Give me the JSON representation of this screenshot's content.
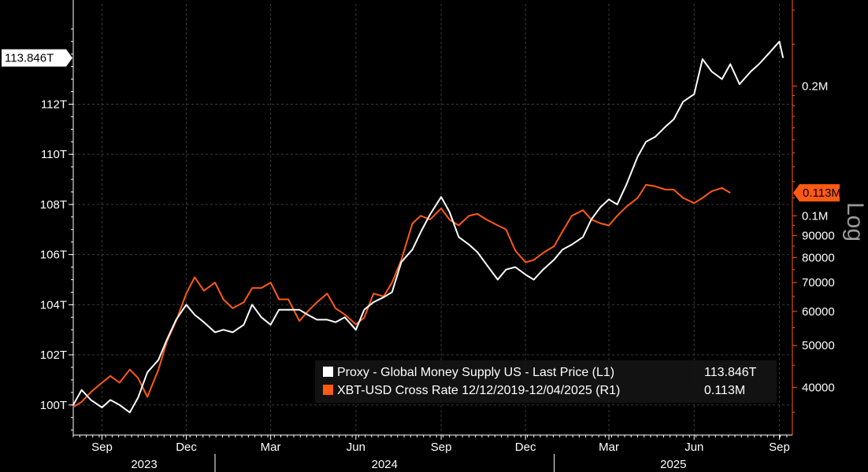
{
  "chart_data": {
    "type": "line",
    "left_axis": {
      "ticks": [
        100,
        102,
        104,
        106,
        108,
        110,
        112
      ],
      "tick_labels": [
        "100T",
        "102T",
        "104T",
        "106T",
        "108T",
        "110T",
        "112T"
      ],
      "range": [
        98.8,
        116.0
      ],
      "current_label": "113.846T"
    },
    "right_axis": {
      "scale": "log",
      "scale_label": "Log",
      "ticks": [
        40000,
        50000,
        60000,
        70000,
        80000,
        90000,
        100000,
        200000
      ],
      "tick_labels": [
        "40000",
        "50000",
        "60000",
        "70000",
        "80000",
        "90000",
        "0.1M",
        "0.2M"
      ],
      "range": [
        31000,
        310000
      ],
      "current_label": "0.113M"
    },
    "x_axis": {
      "range": [
        "2023-08-01",
        "2025-09-15"
      ],
      "month_labels": [
        {
          "date": "2023-09-01",
          "label": "Sep"
        },
        {
          "date": "2023-12-01",
          "label": "Dec"
        },
        {
          "date": "2024-03-01",
          "label": "Mar"
        },
        {
          "date": "2024-06-01",
          "label": "Jun"
        },
        {
          "date": "2024-09-01",
          "label": "Sep"
        },
        {
          "date": "2024-12-01",
          "label": "Dec"
        },
        {
          "date": "2025-03-01",
          "label": "Mar"
        },
        {
          "date": "2025-06-01",
          "label": "Jun"
        },
        {
          "date": "2025-09-01",
          "label": "Sep"
        }
      ],
      "year_labels": [
        {
          "year": "2023",
          "start": "2023-08-01",
          "end": "2024-01-01"
        },
        {
          "year": "2024",
          "start": "2024-01-01",
          "end": "2025-01-01"
        },
        {
          "year": "2025",
          "start": "2025-01-01",
          "end": "2025-09-15"
        }
      ]
    },
    "grid": true,
    "legend_position": "bottom-right",
    "series": [
      {
        "name": "Proxy - Global Money Supply US - Last Price (L1)",
        "last_value_label": "113.846T",
        "axis": "left",
        "color": "#ffffff",
        "x": [
          "2023-08-01",
          "2023-08-10",
          "2023-08-20",
          "2023-09-01",
          "2023-09-10",
          "2023-09-20",
          "2023-10-01",
          "2023-10-10",
          "2023-10-20",
          "2023-11-01",
          "2023-11-10",
          "2023-11-20",
          "2023-12-01",
          "2023-12-10",
          "2023-12-20",
          "2024-01-01",
          "2024-01-10",
          "2024-01-20",
          "2024-02-01",
          "2024-02-10",
          "2024-02-20",
          "2024-03-01",
          "2024-03-10",
          "2024-03-20",
          "2024-04-01",
          "2024-04-10",
          "2024-04-20",
          "2024-05-01",
          "2024-05-10",
          "2024-05-20",
          "2024-06-01",
          "2024-06-10",
          "2024-06-20",
          "2024-07-01",
          "2024-07-10",
          "2024-07-20",
          "2024-08-01",
          "2024-08-10",
          "2024-08-20",
          "2024-09-01",
          "2024-09-10",
          "2024-09-20",
          "2024-10-01",
          "2024-10-10",
          "2024-10-20",
          "2024-11-01",
          "2024-11-10",
          "2024-11-20",
          "2024-12-01",
          "2024-12-10",
          "2024-12-20",
          "2025-01-01",
          "2025-01-10",
          "2025-01-20",
          "2025-02-01",
          "2025-02-10",
          "2025-02-20",
          "2025-03-01",
          "2025-03-10",
          "2025-03-20",
          "2025-04-01",
          "2025-04-10",
          "2025-04-20",
          "2025-05-01",
          "2025-05-10",
          "2025-05-20",
          "2025-06-01",
          "2025-06-10",
          "2025-06-20",
          "2025-07-01",
          "2025-07-10",
          "2025-07-20",
          "2025-08-01",
          "2025-08-10",
          "2025-08-20",
          "2025-09-01",
          "2025-09-05"
        ],
        "values": [
          100.0,
          100.6,
          100.2,
          99.9,
          100.2,
          100.0,
          99.7,
          100.3,
          101.3,
          101.8,
          102.6,
          103.4,
          104.0,
          103.6,
          103.3,
          102.9,
          103.0,
          102.9,
          103.2,
          104.0,
          103.5,
          103.2,
          103.8,
          103.8,
          103.8,
          103.6,
          103.4,
          103.4,
          103.3,
          103.5,
          103.0,
          103.8,
          104.1,
          104.3,
          104.5,
          105.7,
          106.2,
          106.9,
          107.6,
          108.3,
          107.7,
          106.7,
          106.4,
          106.1,
          105.6,
          105.0,
          105.4,
          105.5,
          105.2,
          105.0,
          105.4,
          105.8,
          106.2,
          106.4,
          106.7,
          107.4,
          107.9,
          108.2,
          108.0,
          108.8,
          109.9,
          110.5,
          110.7,
          111.1,
          111.4,
          112.1,
          112.4,
          113.8,
          113.3,
          113.0,
          113.6,
          112.8,
          113.3,
          113.6,
          114.0,
          114.5,
          113.846
        ]
      },
      {
        "name": "XBT-USD Cross Rate 12/12/2019-12/04/2025 (R1)",
        "last_value_label": "0.113M",
        "axis": "right",
        "color": "#ff5a14",
        "x": [
          "2023-08-01",
          "2023-08-10",
          "2023-08-20",
          "2023-09-01",
          "2023-09-10",
          "2023-09-20",
          "2023-10-01",
          "2023-10-10",
          "2023-10-20",
          "2023-11-01",
          "2023-11-10",
          "2023-11-20",
          "2023-12-01",
          "2023-12-10",
          "2023-12-20",
          "2024-01-01",
          "2024-01-10",
          "2024-01-20",
          "2024-02-01",
          "2024-02-10",
          "2024-02-20",
          "2024-03-01",
          "2024-03-10",
          "2024-03-20",
          "2024-04-01",
          "2024-04-10",
          "2024-04-20",
          "2024-05-01",
          "2024-05-10",
          "2024-05-20",
          "2024-06-01",
          "2024-06-10",
          "2024-06-20",
          "2024-07-01",
          "2024-07-10",
          "2024-07-20",
          "2024-08-01",
          "2024-08-10",
          "2024-08-20",
          "2024-09-01",
          "2024-09-10",
          "2024-09-20",
          "2024-10-01",
          "2024-10-10",
          "2024-10-20",
          "2024-11-01",
          "2024-11-10",
          "2024-11-20",
          "2024-12-01",
          "2024-12-10",
          "2024-12-20",
          "2025-01-01",
          "2025-01-10",
          "2025-01-20",
          "2025-02-01",
          "2025-02-10",
          "2025-02-20",
          "2025-03-01",
          "2025-03-10",
          "2025-03-20",
          "2025-04-01",
          "2025-04-10",
          "2025-04-20",
          "2025-05-01",
          "2025-05-10",
          "2025-05-20",
          "2025-06-01",
          "2025-06-10",
          "2025-06-20",
          "2025-07-01",
          "2025-07-10"
        ],
        "values": [
          36000,
          37000,
          39000,
          41000,
          42500,
          41000,
          44000,
          42000,
          38000,
          44000,
          51000,
          57000,
          66000,
          72000,
          67000,
          70000,
          64000,
          61000,
          63000,
          68000,
          68000,
          70000,
          64000,
          64000,
          57000,
          60000,
          63000,
          66000,
          61000,
          59000,
          56000,
          58000,
          66000,
          65000,
          70000,
          79000,
          96000,
          100000,
          98000,
          104000,
          98000,
          95000,
          100000,
          101000,
          98000,
          95000,
          93000,
          83000,
          78000,
          79000,
          82000,
          85000,
          92000,
          100000,
          103000,
          98000,
          96000,
          95000,
          100000,
          105000,
          110000,
          118000,
          117000,
          115000,
          115000,
          110000,
          107000,
          110000,
          114000,
          116000,
          113000
        ]
      }
    ]
  }
}
